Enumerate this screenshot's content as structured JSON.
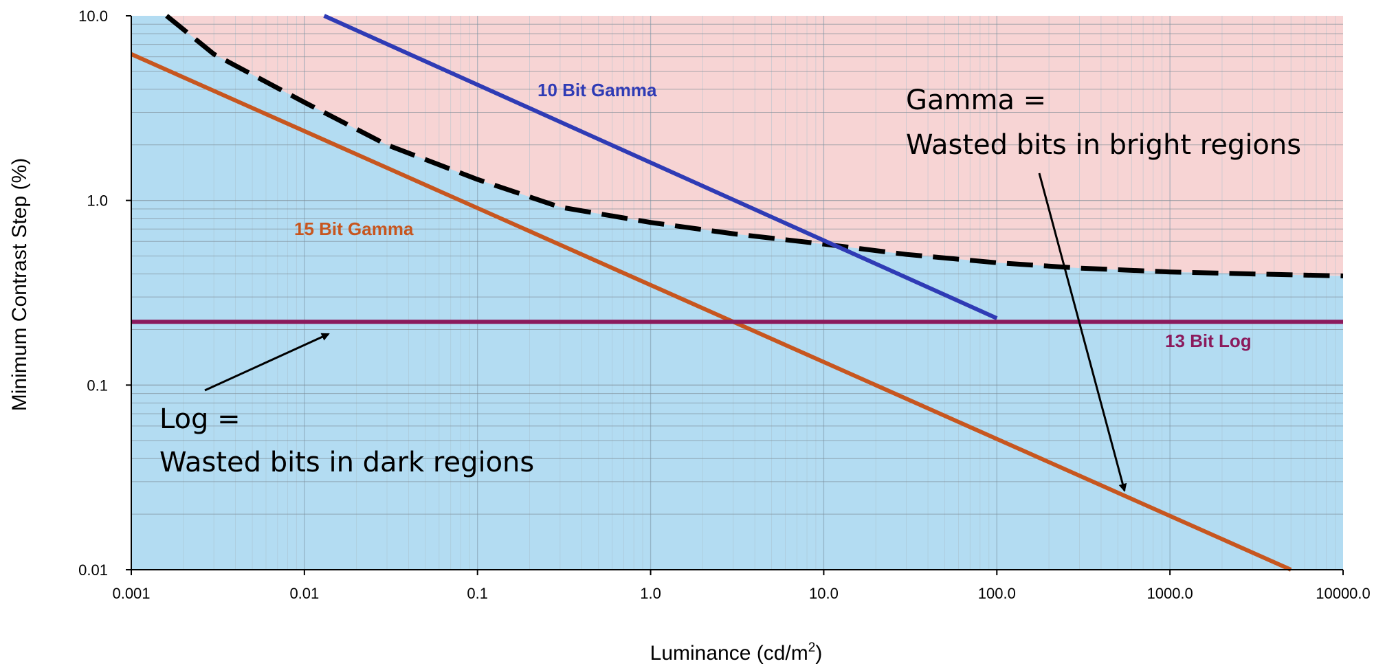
{
  "chart_data": {
    "type": "line",
    "title": "",
    "xlabel": "Luminance (cd/m",
    "xlabel_sup": "2",
    "xlabel_close": ")",
    "ylabel": "Minimum Contrast Step (%)",
    "xscale": "log",
    "yscale": "log",
    "xlim": [
      0.001,
      10000
    ],
    "ylim": [
      0.01,
      10
    ],
    "grid": true,
    "x_ticks": [
      0.001,
      0.01,
      0.1,
      1,
      10,
      100,
      1000,
      10000
    ],
    "x_tick_labels": [
      "0.001",
      "0.01",
      "0.1",
      "1.0",
      "10.0",
      "100.0",
      "1000.0",
      "10000.0"
    ],
    "y_ticks": [
      0.01,
      0.1,
      1,
      10
    ],
    "y_tick_labels": [
      "0.01",
      "0.1",
      "1.0",
      "10.0"
    ],
    "regions": [
      {
        "fill": "#f7d4d4",
        "description_ref": "above-threshold"
      },
      {
        "fill": "#b3dcf2",
        "description_ref": "below-threshold"
      }
    ],
    "series": [
      {
        "name": "",
        "role": "threshold",
        "color": "#000000",
        "dashed": true,
        "x": [
          0.0016,
          0.003,
          0.01,
          0.03,
          0.1,
          0.3,
          1,
          3,
          10,
          30,
          100,
          300,
          1000,
          3000,
          10000
        ],
        "y": [
          10.0,
          6.2,
          3.4,
          2.0,
          1.3,
          0.92,
          0.76,
          0.66,
          0.58,
          0.51,
          0.46,
          0.43,
          0.41,
          0.4,
          0.39
        ]
      },
      {
        "name": "10 Bit Gamma",
        "color": "#2f3bb5",
        "x": [
          0.013,
          100
        ],
        "y": [
          10.0,
          0.23
        ]
      },
      {
        "name": "15 Bit Gamma",
        "color": "#c7561f",
        "x": [
          0.001,
          5000
        ],
        "y": [
          6.2,
          0.01
        ]
      },
      {
        "name": "13 Bit Log",
        "color": "#8b1a5c",
        "x": [
          0.001,
          10000
        ],
        "y": [
          0.22,
          0.22
        ]
      }
    ],
    "annotations": [
      {
        "lines": [
          "Gamma =",
          "Wasted bits in bright regions"
        ],
        "arrow_to": [
          550,
          0.022
        ]
      },
      {
        "lines": [
          "Log =",
          "Wasted bits in dark regions"
        ],
        "arrow_to": [
          0.015,
          0.19
        ]
      }
    ]
  }
}
